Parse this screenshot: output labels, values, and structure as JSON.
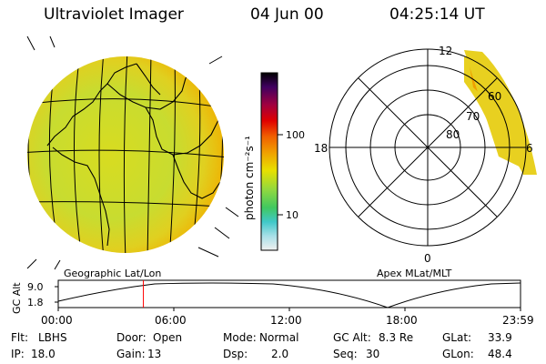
{
  "header": {
    "title": "Ultraviolet Imager",
    "date": "04 Jun 00",
    "time": "04:25:14 UT"
  },
  "colorbar": {
    "unit_label": "photon cm⁻²s⁻¹",
    "ticks": [
      "100",
      "10"
    ]
  },
  "geo_map": {
    "label": "Geographic Lat/Lon"
  },
  "polar_plot": {
    "label": "Apex MLat/MLT",
    "mlt_labels": [
      "12",
      "18",
      "6",
      "0"
    ],
    "mlat_labels": [
      "60",
      "70",
      "80"
    ]
  },
  "altitude_plot": {
    "ylabel": "GC Alt",
    "yticks": [
      "9.0",
      "1.8"
    ],
    "xticks": [
      "00:00",
      "06:00",
      "12:00",
      "18:00",
      "23:59"
    ],
    "marker_time_hours": 4.42
  },
  "info": {
    "filter_label": "Flt:",
    "filter_value": "LBHS",
    "ip_label": "IP:",
    "ip_value": "18.0",
    "door_label": "Door:",
    "door_value": "Open",
    "gain_label": "Gain:",
    "gain_value": "13",
    "mode_label": "Mode:",
    "mode_value": "Normal",
    "dsp_label": "Dsp:",
    "dsp_value": "2.0",
    "gcalt_label": "GC Alt:",
    "gcalt_value": "8.3 Re",
    "seq_label": "Seq:",
    "seq_value": "30",
    "glat_label": "GLat:",
    "glat_value": "33.9",
    "glon_label": "GLon:",
    "glon_value": "48.4"
  },
  "colors": {
    "cb_top": "#000000",
    "cb_high": "#c80000",
    "cb_orange": "#f0a000",
    "cb_yellow": "#e6e600",
    "cb_green": "#60d040",
    "cb_cyan": "#40c8c8",
    "cb_low": "#e8e8e8",
    "marker": "#ff0000"
  }
}
